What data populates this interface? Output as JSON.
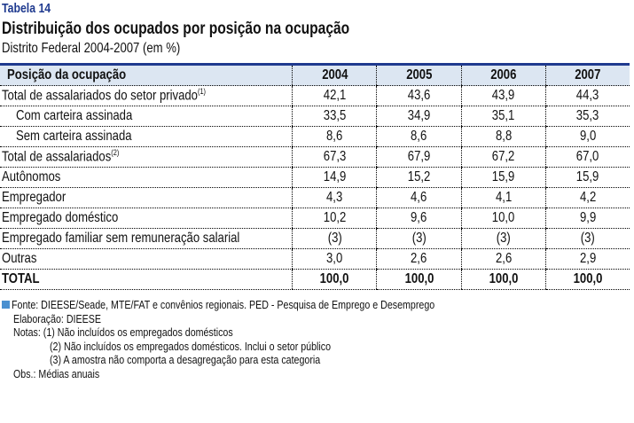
{
  "table_label": "Tabela 14",
  "title": "Distribuição dos ocupados por posição na ocupação",
  "subtitle": "Distrito Federal 2004-2007 (em %)",
  "columns": [
    "Posição da ocupação",
    "2004",
    "2005",
    "2006",
    "2007"
  ],
  "rows": [
    {
      "label": "Total de assalariados do setor privado",
      "sup": "(1)",
      "values": [
        "42,1",
        "43,6",
        "43,9",
        "44,3"
      ]
    },
    {
      "label": "Com carteira assinada",
      "values": [
        "33,5",
        "34,9",
        "35,1",
        "35,3"
      ]
    },
    {
      "label": "Sem carteira assinada",
      "values": [
        "8,6",
        "8,6",
        "8,8",
        "9,0"
      ]
    },
    {
      "label": "Total de assalariados",
      "sup": "(2)",
      "values": [
        "67,3",
        "67,9",
        "67,2",
        "67,0"
      ]
    },
    {
      "label": "Autônomos",
      "values": [
        "14,9",
        "15,2",
        "15,9",
        "15,9"
      ]
    },
    {
      "label": "Empregador",
      "values": [
        "4,3",
        "4,6",
        "4,1",
        "4,2"
      ]
    },
    {
      "label": "Empregado doméstico",
      "values": [
        "10,2",
        "9,6",
        "10,0",
        "9,9"
      ]
    },
    {
      "label": "Empregado familiar sem remuneração salarial",
      "values": [
        "(3)",
        "(3)",
        "(3)",
        "(3)"
      ]
    },
    {
      "label": "Outras",
      "values": [
        "3,0",
        "2,6",
        "2,6",
        "2,9"
      ]
    },
    {
      "label": "TOTAL",
      "values": [
        "100,0",
        "100,0",
        "100,0",
        "100,0"
      ]
    }
  ],
  "notes": {
    "source": "Fonte: DIEESE/Seade, MTE/FAT e convênios regionais. PED - Pesquisa de Emprego e Desemprego",
    "elaboration": "Elaboração: DIEESE",
    "notes_label": "Notas:",
    "note1": "(1) Não incluídos os empregados domésticos",
    "note2": "(2) Não incluídos os empregados domésticos. Inclui o setor público",
    "note3": "(3) A amostra não comporta a desagregação para esta categoria",
    "obs": "Obs.: Médias anuais"
  },
  "colors": {
    "accent": "#1f3a8f",
    "header_bg": "#dce6f2",
    "bullet": "#4a90d0"
  }
}
